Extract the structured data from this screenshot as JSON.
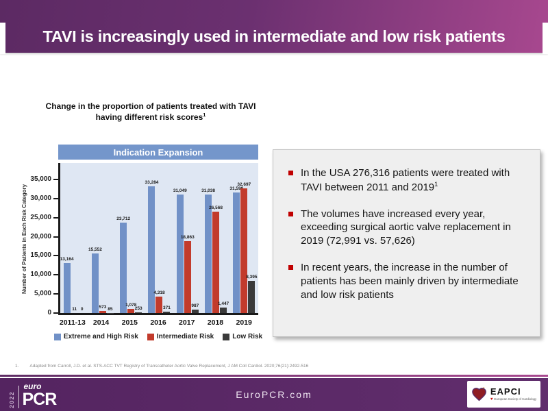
{
  "header": {
    "title": "TAVI is increasingly used in intermediate and low risk patients"
  },
  "subtitle": {
    "line1": "Change in the proportion of patients treated with TAVI",
    "line2": "having different risk scores",
    "sup": "1"
  },
  "chart_data": {
    "type": "bar",
    "title": "Indication Expansion",
    "ylabel": "Number of Patients in Each Risk Category",
    "xlabel": "",
    "categories": [
      "2011-13",
      "2014",
      "2015",
      "2016",
      "2017",
      "2018",
      "2019"
    ],
    "series": [
      {
        "name": "Extreme and High Risk",
        "color": "#7191c7",
        "values": [
          13164,
          15552,
          23712,
          33284,
          31049,
          31038,
          31598
        ],
        "labels": [
          "13,164",
          "15,552",
          "23,712",
          "33,284",
          "31,049",
          "31,038",
          "31,598"
        ]
      },
      {
        "name": "Intermediate Risk",
        "color": "#c23b2c",
        "values": [
          11,
          573,
          1078,
          4318,
          18863,
          26568,
          32697
        ],
        "labels": [
          "11",
          "573",
          "1,078",
          "4,318",
          "18,863",
          "26,568",
          "32,697"
        ]
      },
      {
        "name": "Low Risk",
        "color": "#3b3b3b",
        "values": [
          0,
          85,
          253,
          371,
          987,
          1447,
          8395
        ],
        "labels": [
          "0",
          "85",
          "253",
          "371",
          "987",
          "1,447",
          "8,395"
        ]
      }
    ],
    "ylim": [
      0,
      35000
    ],
    "yticks": [
      {
        "label": "35,000",
        "value": 35000
      },
      {
        "label": "30,000",
        "value": 30000
      },
      {
        "label": "25,000",
        "value": 25000
      },
      {
        "label": "20,000",
        "value": 20000
      },
      {
        "label": "15,000",
        "value": 15000
      },
      {
        "label": "10,000",
        "value": 10000
      },
      {
        "label": "5,000",
        "value": 5000
      },
      {
        "label": "0",
        "value": 0
      }
    ],
    "grid": false,
    "legend_position": "bottom"
  },
  "bullets": [
    {
      "text": "In the USA 276,316 patients were treated with TAVI between 2011 and 2019",
      "sup": "1"
    },
    {
      "text": "The volumes have increased every year, exceeding surgical aortic valve replacement in 2019 (72,991 vs. 57,626)",
      "sup": ""
    },
    {
      "text": "In recent years, the increase in the number of patients has been mainly driven by intermediate and low risk patients",
      "sup": ""
    }
  ],
  "footnote": {
    "number": "1.",
    "text": "Adapted from Carroll, J.D. et al. STS-ACC TVT Registry of Transcatheter Aortic Valve Replacement, J AM Coll Cardiol. 2020;76(21):2492-516"
  },
  "footer": {
    "year": "2022",
    "logo_top": "euro",
    "logo_main": "PCR",
    "site": "EuroPCR.com",
    "eapci_name": "EAPCI",
    "eapci_tagline": "European Society of Cardiology"
  },
  "colors": {
    "header_gradient_left": "#5c2a63",
    "header_gradient_right": "#a8488f",
    "footer_purple": "#542460",
    "banner_blue": "#7496cb",
    "plot_bg": "#dfe7f3",
    "bullet_marker": "#c00000"
  }
}
